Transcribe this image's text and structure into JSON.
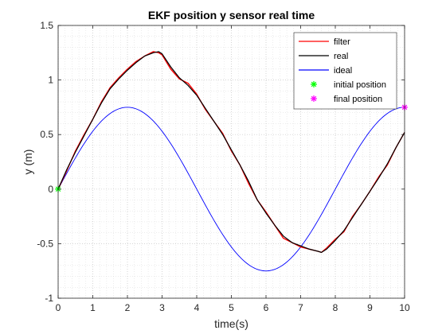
{
  "chart_data": {
    "type": "line",
    "title": "EKF position y sensor real time",
    "xlabel": "time(s)",
    "ylabel": "y (m)",
    "xlim": [
      0,
      10
    ],
    "ylim": [
      -1,
      1.5
    ],
    "xticks": [
      0,
      1,
      2,
      3,
      4,
      5,
      6,
      7,
      8,
      9,
      10
    ],
    "yticks": [
      -1,
      -0.5,
      0,
      0.5,
      1,
      1.5
    ],
    "xtick_labels": [
      "0",
      "1",
      "2",
      "3",
      "4",
      "5",
      "6",
      "7",
      "8",
      "9",
      "10"
    ],
    "ytick_labels": [
      "-1",
      "-0.5",
      "0",
      "0.5",
      "1",
      "1.5"
    ],
    "grid": "on (major and minor, dotted)",
    "legend_position": "top-right",
    "series": [
      {
        "name": "filter",
        "color": "#ff0000",
        "style": "line",
        "x": [
          0,
          0.25,
          0.5,
          0.75,
          1.0,
          1.25,
          1.5,
          1.75,
          2.0,
          2.25,
          2.5,
          2.75,
          2.9,
          3.0,
          3.25,
          3.5,
          3.75,
          4.0,
          4.25,
          4.5,
          4.75,
          5.0,
          5.25,
          5.5,
          5.75,
          6.0,
          6.25,
          6.5,
          6.75,
          7.0,
          7.25,
          7.5,
          7.6,
          7.75,
          8.0,
          8.25,
          8.5,
          8.75,
          9.0,
          9.25,
          9.5,
          9.75,
          10.0
        ],
        "y": [
          0.0,
          0.17,
          0.35,
          0.5,
          0.64,
          0.8,
          0.93,
          1.02,
          1.1,
          1.17,
          1.22,
          1.26,
          1.25,
          1.23,
          1.1,
          1.01,
          0.97,
          0.87,
          0.73,
          0.62,
          0.51,
          0.35,
          0.22,
          0.05,
          -0.1,
          -0.21,
          -0.33,
          -0.45,
          -0.49,
          -0.53,
          -0.55,
          -0.57,
          -0.58,
          -0.54,
          -0.46,
          -0.39,
          -0.25,
          -0.14,
          -0.02,
          0.11,
          0.22,
          0.38,
          0.52
        ]
      },
      {
        "name": "real",
        "color": "#000000",
        "style": "line",
        "x": [
          0,
          0.25,
          0.5,
          0.75,
          1.0,
          1.25,
          1.5,
          1.75,
          2.0,
          2.25,
          2.5,
          2.75,
          2.9,
          3.0,
          3.25,
          3.5,
          3.75,
          4.0,
          4.25,
          4.5,
          4.75,
          5.0,
          5.25,
          5.5,
          5.75,
          6.0,
          6.25,
          6.5,
          6.75,
          7.0,
          7.25,
          7.5,
          7.6,
          7.75,
          8.0,
          8.25,
          8.5,
          8.75,
          9.0,
          9.25,
          9.5,
          9.75,
          10.0
        ],
        "y": [
          0.0,
          0.18,
          0.34,
          0.49,
          0.64,
          0.79,
          0.92,
          1.01,
          1.09,
          1.16,
          1.22,
          1.25,
          1.26,
          1.24,
          1.12,
          1.02,
          0.95,
          0.86,
          0.74,
          0.62,
          0.5,
          0.36,
          0.22,
          0.07,
          -0.1,
          -0.22,
          -0.33,
          -0.43,
          -0.49,
          -0.52,
          -0.55,
          -0.57,
          -0.58,
          -0.55,
          -0.47,
          -0.38,
          -0.26,
          -0.14,
          -0.02,
          0.1,
          0.23,
          0.38,
          0.52
        ]
      },
      {
        "name": "ideal",
        "color": "#0000ff",
        "style": "line",
        "function": "0.75*sin(pi*x/4)",
        "x": [
          0,
          0.5,
          1,
          1.5,
          2,
          2.5,
          3,
          3.5,
          4,
          4.5,
          5,
          5.5,
          6,
          6.5,
          7,
          7.5,
          8,
          8.5,
          9,
          9.5,
          10
        ],
        "y": [
          0,
          0.287,
          0.53,
          0.693,
          0.75,
          0.693,
          0.53,
          0.287,
          0,
          -0.287,
          -0.53,
          -0.693,
          -0.75,
          -0.693,
          -0.53,
          -0.287,
          0,
          0.287,
          0.53,
          0.693,
          0.75
        ]
      },
      {
        "name": "initial position",
        "color": "#00ff00",
        "style": "marker",
        "marker": "asterisk",
        "x": [
          0
        ],
        "y": [
          0
        ]
      },
      {
        "name": "final position",
        "color": "#ff00ff",
        "style": "marker",
        "marker": "asterisk",
        "x": [
          10
        ],
        "y": [
          0.75
        ]
      }
    ]
  }
}
